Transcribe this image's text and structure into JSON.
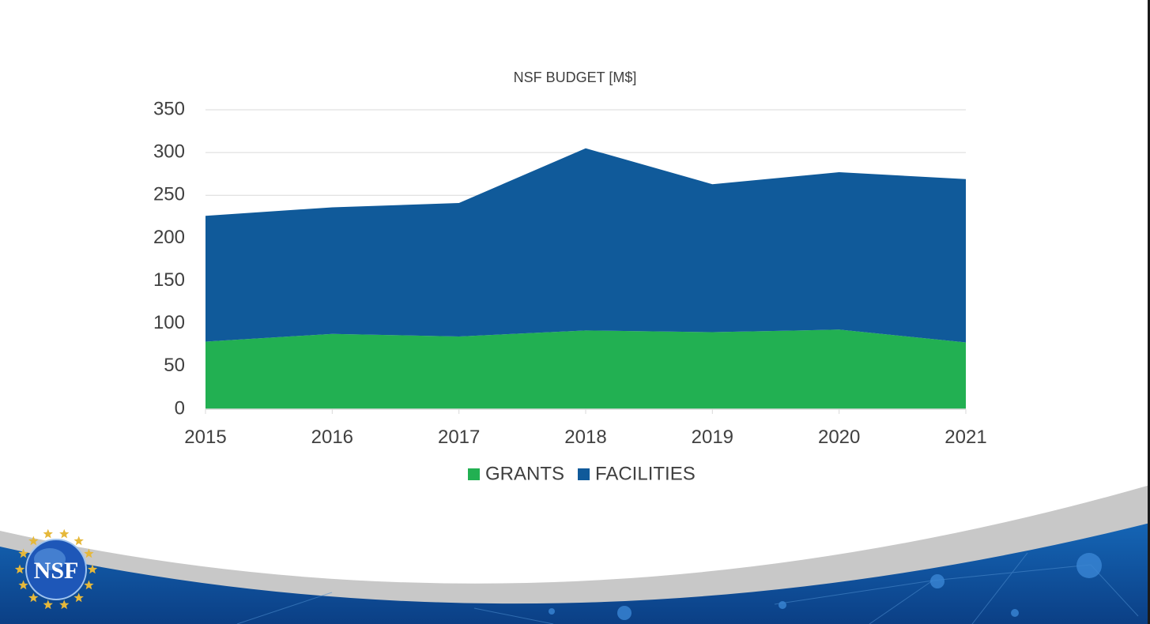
{
  "chart_data": {
    "type": "area",
    "stacked": true,
    "title": "NSF BUDGET [M$]",
    "xlabel": "",
    "ylabel": "",
    "x": [
      "2015",
      "2016",
      "2017",
      "2018",
      "2019",
      "2020",
      "2021"
    ],
    "ylim": [
      0,
      350
    ],
    "yticks": [
      0,
      50,
      100,
      150,
      200,
      250,
      300,
      350
    ],
    "grid": true,
    "legend_position": "bottom",
    "series": [
      {
        "name": "GRANTS",
        "values": [
          79,
          88,
          85,
          92,
          90,
          93,
          78
        ],
        "color": "#22b052"
      },
      {
        "name": "FACILITIES",
        "values": [
          147,
          148,
          156,
          213,
          173,
          184,
          191
        ],
        "color": "#105a9a"
      }
    ]
  },
  "footer": {
    "logo_text": "NSF",
    "colors": {
      "band": "#0e4f9e",
      "swoosh": "#c8c8c8"
    }
  }
}
